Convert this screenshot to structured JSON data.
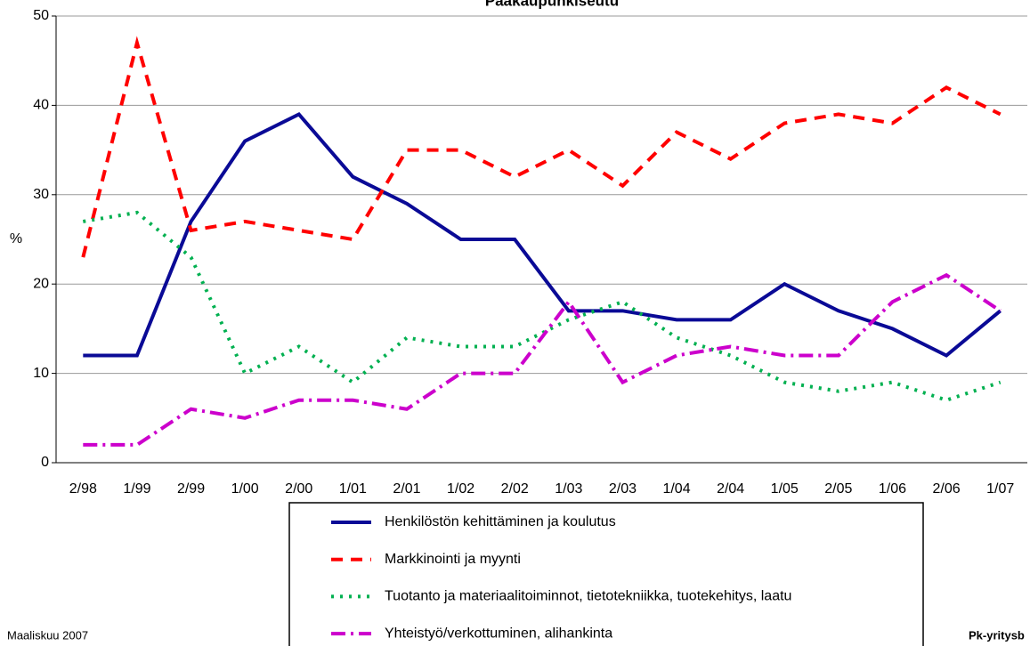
{
  "chart_data": {
    "type": "line",
    "title": "Pääkaupunkiseutu",
    "y_label": "%",
    "categories": [
      "2/98",
      "1/99",
      "2/99",
      "1/00",
      "2/00",
      "1/01",
      "2/01",
      "1/02",
      "2/02",
      "1/03",
      "2/03",
      "1/04",
      "2/04",
      "1/05",
      "2/05",
      "1/06",
      "2/06",
      "1/07"
    ],
    "series": [
      {
        "name": "Henkilöstön kehittäminen ja koulutus",
        "color": "#0a0a96",
        "dash": "solid",
        "values": [
          12,
          12,
          27,
          36,
          39,
          32,
          29,
          25,
          25,
          17,
          17,
          16,
          16,
          20,
          17,
          15,
          12,
          17
        ]
      },
      {
        "name": "Markkinointi ja myynti",
        "color": "#ff0000",
        "dash": "dashed",
        "values": [
          23,
          47,
          26,
          27,
          26,
          25,
          35,
          35,
          32,
          35,
          31,
          37,
          34,
          38,
          39,
          38,
          42,
          39
        ]
      },
      {
        "name": "Tuotanto ja materiaalitoiminnot, tietotekniikka, tuotekehitys, laatu",
        "color": "#00b050",
        "dash": "dotted",
        "values": [
          27,
          28,
          23,
          10,
          13,
          9,
          14,
          13,
          13,
          16,
          18,
          14,
          12,
          9,
          8,
          9,
          7,
          9
        ]
      },
      {
        "name": "Yhteistyö/verkottuminen, alihankinta",
        "color": "#cc00cc",
        "dash": "dashdot",
        "values": [
          2,
          2,
          6,
          5,
          7,
          7,
          6,
          10,
          10,
          18,
          9,
          12,
          13,
          12,
          12,
          18,
          21,
          17
        ]
      }
    ],
    "ylim": [
      0,
      50
    ],
    "yticks": [
      0,
      10,
      20,
      30,
      40,
      50
    ],
    "grid": true,
    "footer_left": "Maaliskuu 2007",
    "footer_right": "Pk-yritysb"
  }
}
